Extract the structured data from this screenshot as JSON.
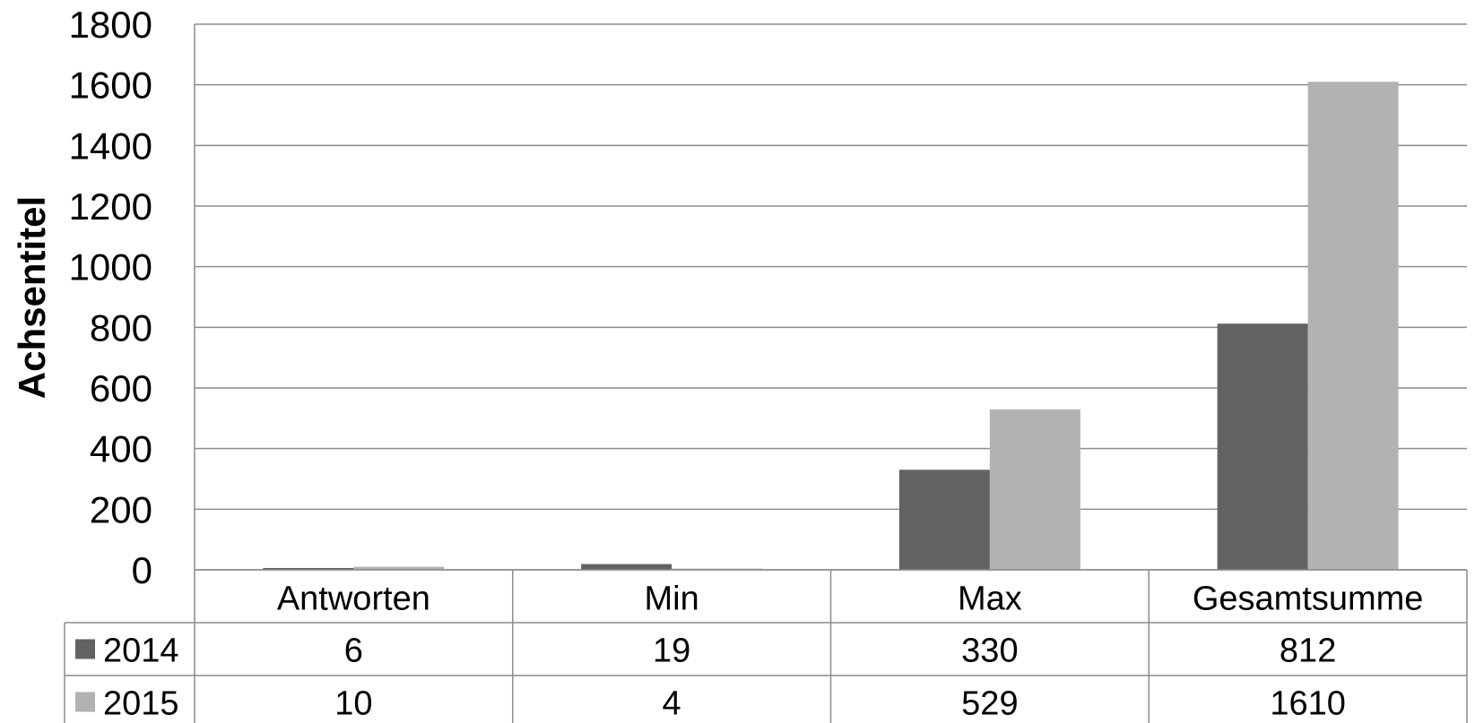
{
  "chart_data": {
    "type": "bar",
    "title": "",
    "xlabel": "",
    "ylabel": "Achsentitel",
    "ylim": [
      0,
      1800
    ],
    "yticks": [
      0,
      200,
      400,
      600,
      800,
      1000,
      1200,
      1400,
      1600,
      1800
    ],
    "categories": [
      "Antworten",
      "Min",
      "Max",
      "Gesamtsumme"
    ],
    "series": [
      {
        "name": "2014",
        "values": [
          6,
          19,
          330,
          812
        ],
        "color": "#626262"
      },
      {
        "name": "2015",
        "values": [
          10,
          4,
          529,
          1610
        ],
        "color": "#b2b2b2"
      }
    ],
    "grid": true,
    "legend": "data-table"
  }
}
